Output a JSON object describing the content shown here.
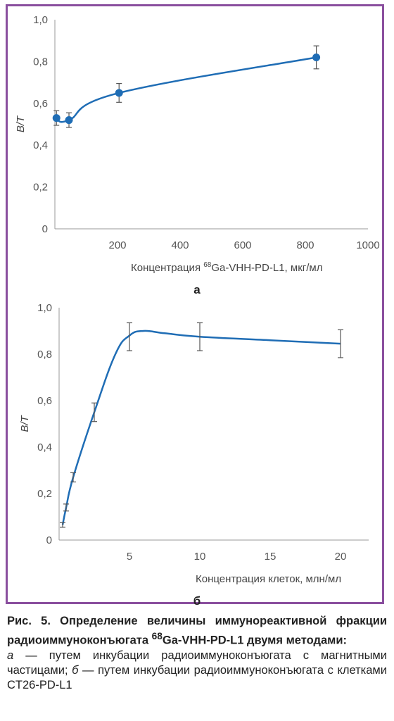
{
  "chart_data": [
    {
      "panel": "а",
      "type": "line",
      "xlabel_prefix": "Концентрация ",
      "xlabel_sup": "68",
      "xlabel_rest": "Ga-VHH-PD-L1, мкг/мл",
      "ylabel": "B/T",
      "xlim": [
        0,
        1000
      ],
      "ylim": [
        0,
        1.0
      ],
      "x_ticks": [
        "200",
        "400",
        "600",
        "800",
        "1000"
      ],
      "x_tick_values": [
        200,
        400,
        600,
        800,
        1000
      ],
      "y_ticks": [
        "0",
        "0,2",
        "0,4",
        "0,6",
        "0,8",
        "1,0"
      ],
      "y_tick_values": [
        0,
        0.2,
        0.4,
        0.6,
        0.8,
        1.0
      ],
      "x": [
        5,
        45,
        205,
        835
      ],
      "y": [
        0.53,
        0.52,
        0.65,
        0.82
      ],
      "err": [
        0.035,
        0.035,
        0.045,
        0.055
      ],
      "color": "#1f6db5",
      "markers": true
    },
    {
      "panel": "б",
      "type": "line",
      "xlabel": "Концентрация клеток, млн/мл",
      "ylabel": "B/T",
      "xlim": [
        0,
        22
      ],
      "ylim": [
        0,
        1.0
      ],
      "x_ticks": [
        "5",
        "10",
        "15",
        "20"
      ],
      "x_tick_values": [
        5,
        10,
        15,
        20
      ],
      "y_ticks": [
        "0",
        "0,2",
        "0,4",
        "0,6",
        "0,8",
        "1,0"
      ],
      "y_tick_values": [
        0,
        0.2,
        0.4,
        0.6,
        0.8,
        1.0
      ],
      "x": [
        0.25,
        0.5,
        1.0,
        2.5,
        5.0,
        10.0,
        20.0
      ],
      "y": [
        0.065,
        0.14,
        0.27,
        0.55,
        0.875,
        0.875,
        0.845
      ],
      "err": [
        0.01,
        0.015,
        0.02,
        0.04,
        0.06,
        0.06,
        0.06
      ],
      "curve_x": [
        0.25,
        0.5,
        1.0,
        2.5,
        4.0,
        5.0,
        6.0,
        7.5,
        10.0,
        15.0,
        20.0
      ],
      "curve_y": [
        0.065,
        0.14,
        0.27,
        0.55,
        0.8,
        0.88,
        0.9,
        0.89,
        0.875,
        0.86,
        0.845
      ],
      "color": "#1f6db5",
      "markers": false
    }
  ],
  "caption": {
    "title": "Рис. 5. Определение величины иммунореактивной фракции радиоиммуноконъюгата ",
    "title_sup": "68",
    "title_rest": "Ga-VHH-PD-L1 двумя методами:",
    "a_label": "а",
    "a_text": " — путем инкубации радиоиммуноконъюгата с магнитными частицами; ",
    "b_label": "б",
    "b_text": " — путем инкубации радиоиммуноконъюгата с клетками CT26-PD-L1"
  }
}
